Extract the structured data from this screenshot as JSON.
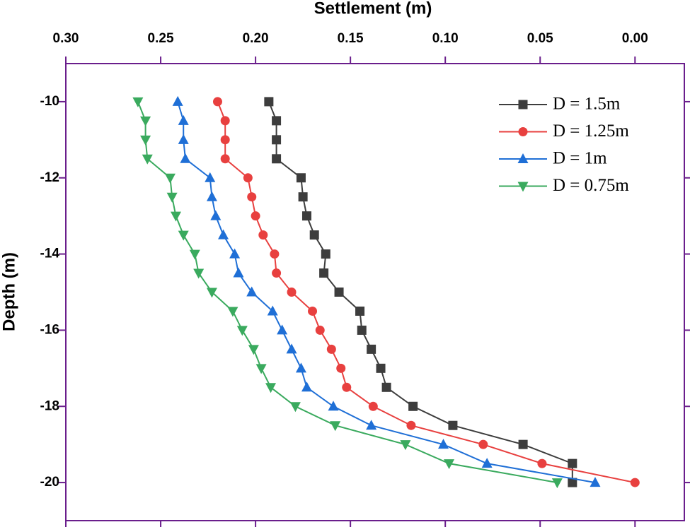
{
  "chart_data": {
    "type": "line",
    "title": "Settlement (m)",
    "y_label": "Depth (m)",
    "y": [
      -10,
      -10.5,
      -11,
      -11.5,
      -12,
      -12.5,
      -13,
      -13.5,
      -14,
      -14.5,
      -15,
      -15.5,
      -16,
      -16.5,
      -17,
      -17.5,
      -18,
      -18.5,
      -19,
      -19.5,
      -20
    ],
    "series": [
      {
        "name": "D = 1.5m",
        "color": "#3d3d3d",
        "marker": "square",
        "values": [
          0.193,
          0.189,
          0.189,
          0.189,
          0.176,
          0.175,
          0.173,
          0.169,
          0.163,
          0.164,
          0.156,
          0.145,
          0.144,
          0.139,
          0.134,
          0.131,
          0.117,
          0.096,
          0.059,
          0.033,
          0.033
        ]
      },
      {
        "name": "D = 1.25m",
        "color": "#e8403f",
        "marker": "circle",
        "values": [
          0.22,
          0.216,
          0.216,
          0.216,
          0.204,
          0.202,
          0.2,
          0.196,
          0.19,
          0.189,
          0.181,
          0.17,
          0.166,
          0.16,
          0.155,
          0.152,
          0.138,
          0.118,
          0.08,
          0.049,
          0.0
        ]
      },
      {
        "name": "D = 1m",
        "color": "#1f6fd6",
        "marker": "triangle-up",
        "values": [
          0.241,
          0.238,
          0.238,
          0.237,
          0.224,
          0.223,
          0.221,
          0.217,
          0.211,
          0.209,
          0.202,
          0.191,
          0.186,
          0.181,
          0.176,
          0.173,
          0.159,
          0.139,
          0.101,
          0.078,
          0.021
        ]
      },
      {
        "name": "D = 0.75m",
        "color": "#3aaa5e",
        "marker": "triangle-down",
        "values": [
          0.262,
          0.258,
          0.258,
          0.257,
          0.245,
          0.244,
          0.242,
          0.238,
          0.232,
          0.23,
          0.223,
          0.212,
          0.207,
          0.201,
          0.197,
          0.192,
          0.179,
          0.158,
          0.121,
          0.098,
          0.041
        ]
      }
    ],
    "xlim": [
      0.3,
      -0.026
    ],
    "ylim": [
      -21,
      -9
    ],
    "xticks": [
      {
        "value": 0.3,
        "label": "0.30"
      },
      0.25,
      {
        "value": 0.2,
        "label": "0.20"
      },
      0.15,
      {
        "value": 0.1,
        "label": "0.10"
      },
      0.05,
      {
        "value": 0,
        "label": "0.00"
      }
    ],
    "yticks": [
      -10,
      -12,
      -14,
      -16,
      -18,
      -20
    ],
    "x_axis_position": "top",
    "legend": "upper right",
    "frame_color": "#6a1e8c"
  }
}
